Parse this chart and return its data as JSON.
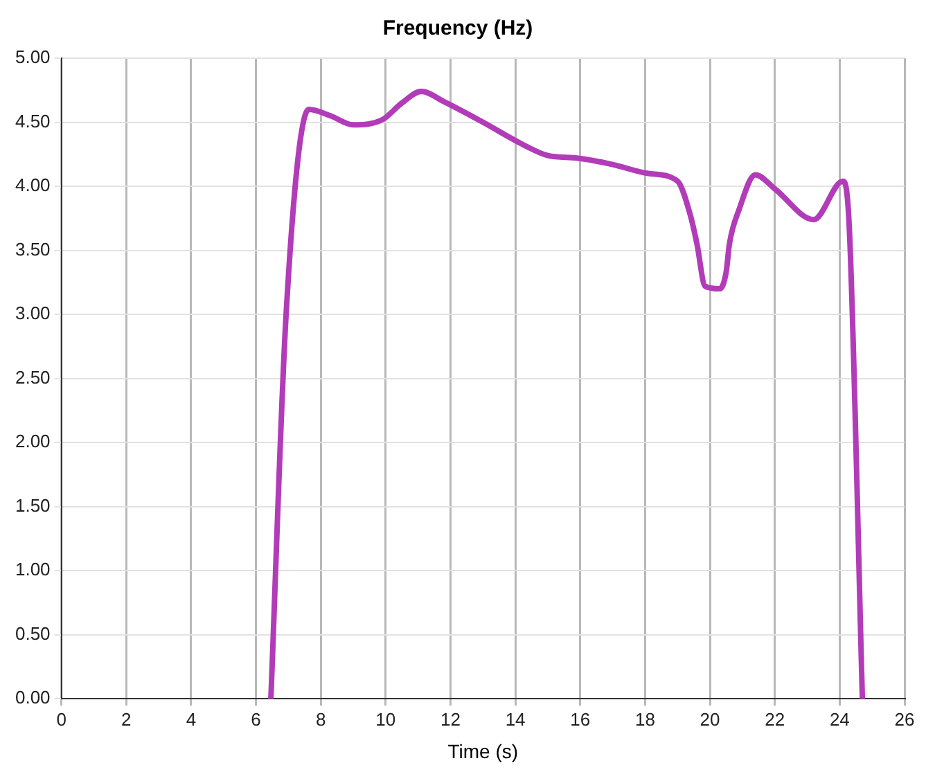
{
  "chart_data": {
    "type": "line",
    "title": "Frequency (Hz)",
    "xlabel": "Time (s)",
    "series": [
      {
        "color": "#b23cb8",
        "x": [
          6.46,
          6.93,
          7.63,
          8.3,
          9.0,
          9.9,
          10.5,
          11.1,
          11.8,
          13.0,
          14.2,
          15.0,
          15.9,
          17.0,
          18.1,
          19.0,
          19.4,
          19.6,
          19.85,
          20.3,
          20.5,
          20.6,
          20.9,
          21.4,
          22.0,
          23.2,
          24.1,
          24.3,
          24.7
        ],
        "values": [
          0,
          3.0,
          4.6,
          4.55,
          4.48,
          4.52,
          4.65,
          4.74,
          4.66,
          4.5,
          4.33,
          4.24,
          4.22,
          4.17,
          4.1,
          4.04,
          3.77,
          3.55,
          3.22,
          3.2,
          3.33,
          3.55,
          3.82,
          4.09,
          3.98,
          3.74,
          4.04,
          3.66,
          0
        ]
      }
    ],
    "xlim": [
      0,
      26
    ],
    "xticks": [
      0,
      2,
      4,
      6,
      8,
      10,
      12,
      14,
      16,
      18,
      20,
      22,
      24,
      26
    ],
    "ylim": [
      0,
      5
    ],
    "yticks": [
      {
        "value": 0,
        "label": "0.00"
      },
      {
        "value": 0.5,
        "label": "0.50"
      },
      {
        "value": 1,
        "label": "1.00"
      },
      {
        "value": 1.5,
        "label": "1.50"
      },
      {
        "value": 2,
        "label": "2.00"
      },
      {
        "value": 2.5,
        "label": "2.50"
      },
      {
        "value": 3,
        "label": "3.00"
      },
      {
        "value": 3.5,
        "label": "3.50"
      },
      {
        "value": 4,
        "label": "4.00"
      },
      {
        "value": 4.5,
        "label": "4.50"
      },
      {
        "value": 5,
        "label": "5.00"
      }
    ],
    "grid": true,
    "legend": false,
    "marker": "none",
    "line_style": "solid"
  }
}
